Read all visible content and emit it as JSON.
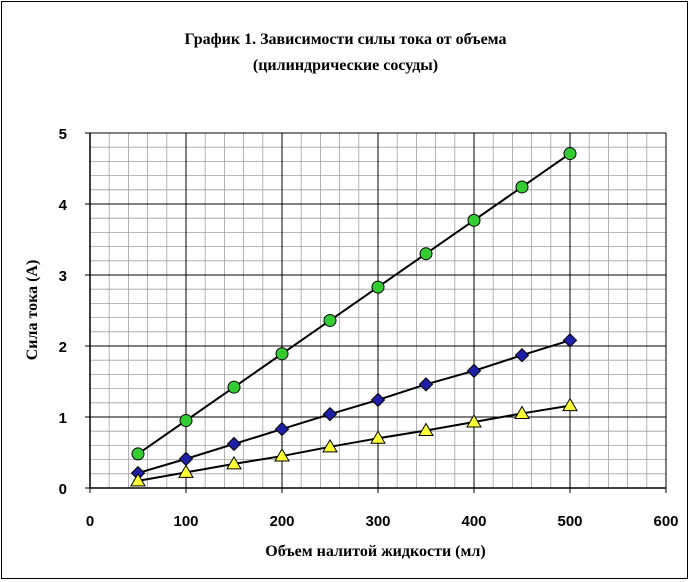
{
  "chart_data": {
    "type": "scatter",
    "title": "График 1. Зависимости силы тока от объема",
    "subtitle": "(цилиндрические сосуды)",
    "xlabel": "Объем налитой жидкости (мл)",
    "ylabel": "Сила тока (А)",
    "xlim": [
      0,
      600
    ],
    "ylim": [
      0,
      5
    ],
    "x_ticks": [
      0,
      100,
      200,
      300,
      400,
      500,
      600
    ],
    "y_ticks": [
      0,
      1,
      2,
      3,
      4,
      5
    ],
    "grid": true,
    "series": [
      {
        "marker": "circle",
        "color": "#33cc33",
        "x": [
          50,
          100,
          150,
          200,
          250,
          300,
          350,
          400,
          450,
          500
        ],
        "y": [
          0.48,
          0.95,
          1.42,
          1.89,
          2.36,
          2.83,
          3.3,
          3.77,
          4.24,
          4.71
        ]
      },
      {
        "marker": "diamond",
        "color": "#1f1fa8",
        "x": [
          50,
          100,
          150,
          200,
          250,
          300,
          350,
          400,
          450,
          500
        ],
        "y": [
          0.21,
          0.41,
          0.62,
          0.83,
          1.04,
          1.24,
          1.46,
          1.65,
          1.87,
          2.08
        ]
      },
      {
        "marker": "triangle",
        "color": "#ffff33",
        "x": [
          50,
          100,
          150,
          200,
          250,
          300,
          350,
          400,
          450,
          500
        ],
        "y": [
          0.1,
          0.22,
          0.34,
          0.45,
          0.58,
          0.7,
          0.81,
          0.93,
          1.05,
          1.16
        ]
      }
    ]
  }
}
